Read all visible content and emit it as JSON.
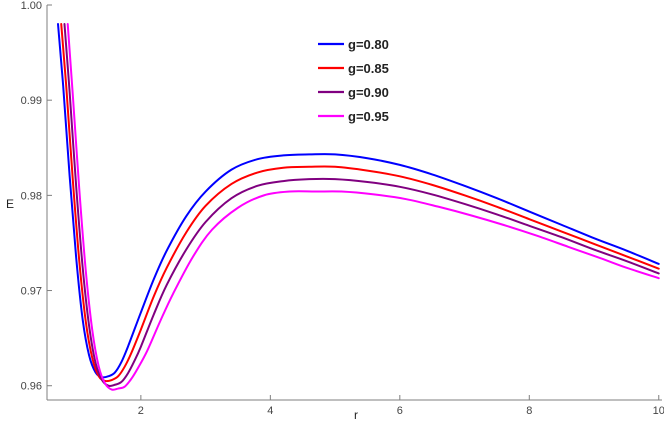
{
  "chart_data": {
    "type": "line",
    "title": "",
    "xlabel": "r",
    "ylabel": "E",
    "xlim": [
      0.55,
      10.05
    ],
    "ylim": [
      0.9585,
      1.0
    ],
    "x_ticks": [
      2,
      4,
      6,
      8,
      10
    ],
    "x_tick_labels": [
      "2",
      "4",
      "6",
      "8",
      "10"
    ],
    "y_ticks": [
      0.96,
      0.97,
      0.98,
      0.99,
      1.0
    ],
    "y_tick_labels": [
      "0.96",
      "0.97",
      "0.98",
      "0.99",
      "1.00"
    ],
    "grid": false,
    "legend_position": "top-center",
    "series": [
      {
        "name": "g=0.80",
        "color": "#0000ff",
        "x": [
          0.72,
          0.8,
          0.9,
          1.0,
          1.1,
          1.2,
          1.3,
          1.4,
          1.5,
          1.6,
          1.7,
          1.8,
          2.0,
          2.2,
          2.4,
          2.7,
          3.0,
          3.4,
          3.8,
          4.2,
          4.6,
          5.0,
          5.5,
          6.0,
          6.5,
          7.0,
          7.5,
          8.0,
          8.5,
          9.0,
          9.5,
          10.0
        ],
        "y": [
          0.998,
          0.9915,
          0.982,
          0.9735,
          0.967,
          0.9632,
          0.9614,
          0.9609,
          0.961,
          0.9614,
          0.9625,
          0.9641,
          0.9677,
          0.9712,
          0.9742,
          0.9778,
          0.9804,
          0.9827,
          0.9838,
          0.9842,
          0.9843,
          0.9843,
          0.9839,
          0.9832,
          0.9822,
          0.981,
          0.9797,
          0.9783,
          0.9769,
          0.9755,
          0.9742,
          0.9728
        ]
      },
      {
        "name": "g=0.85",
        "color": "#ff0000",
        "x": [
          0.77,
          0.85,
          0.95,
          1.05,
          1.15,
          1.25,
          1.35,
          1.45,
          1.55,
          1.65,
          1.75,
          1.85,
          2.0,
          2.2,
          2.4,
          2.7,
          3.0,
          3.4,
          3.8,
          4.2,
          4.6,
          5.0,
          5.5,
          6.0,
          6.5,
          7.0,
          7.5,
          8.0,
          8.5,
          9.0,
          9.5,
          10.0
        ],
        "y": [
          0.998,
          0.9912,
          0.9815,
          0.973,
          0.9667,
          0.9629,
          0.961,
          0.9605,
          0.9606,
          0.961,
          0.962,
          0.9634,
          0.9659,
          0.9694,
          0.9724,
          0.9761,
          0.9789,
          0.9812,
          0.9824,
          0.9829,
          0.983,
          0.983,
          0.9826,
          0.982,
          0.9811,
          0.98,
          0.9788,
          0.9775,
          0.9762,
          0.9749,
          0.9736,
          0.9723
        ]
      },
      {
        "name": "g=0.90",
        "color": "#800080",
        "x": [
          0.82,
          0.9,
          1.0,
          1.1,
          1.2,
          1.3,
          1.4,
          1.5,
          1.6,
          1.7,
          1.8,
          1.9,
          2.0,
          2.2,
          2.4,
          2.7,
          3.0,
          3.4,
          3.8,
          4.2,
          4.6,
          5.0,
          5.5,
          6.0,
          6.5,
          7.0,
          7.5,
          8.0,
          8.5,
          9.0,
          9.5,
          10.0
        ],
        "y": [
          0.998,
          0.9908,
          0.981,
          0.9725,
          0.9663,
          0.9624,
          0.9606,
          0.96,
          0.9601,
          0.9604,
          0.9613,
          0.9626,
          0.9641,
          0.9675,
          0.9706,
          0.9743,
          0.9772,
          0.9797,
          0.981,
          0.9815,
          0.9817,
          0.9817,
          0.9814,
          0.9809,
          0.9801,
          0.9791,
          0.978,
          0.9768,
          0.9756,
          0.9743,
          0.9731,
          0.9718
        ]
      },
      {
        "name": "g=0.95",
        "color": "#ff00ff",
        "x": [
          0.87,
          0.95,
          1.05,
          1.15,
          1.25,
          1.35,
          1.45,
          1.55,
          1.65,
          1.75,
          1.85,
          1.95,
          2.1,
          2.3,
          2.5,
          2.8,
          3.1,
          3.5,
          3.9,
          4.3,
          4.7,
          5.1,
          5.6,
          6.1,
          6.6,
          7.1,
          7.6,
          8.1,
          8.6,
          9.1,
          9.5,
          10.0
        ],
        "y": [
          0.998,
          0.9904,
          0.9805,
          0.972,
          0.9658,
          0.962,
          0.9602,
          0.9596,
          0.9597,
          0.9599,
          0.9607,
          0.9618,
          0.9637,
          0.9668,
          0.9697,
          0.9735,
          0.9764,
          0.9787,
          0.98,
          0.9804,
          0.9804,
          0.9804,
          0.9801,
          0.9796,
          0.9788,
          0.9779,
          0.9769,
          0.9758,
          0.9746,
          0.9734,
          0.9724,
          0.9713
        ]
      }
    ]
  }
}
